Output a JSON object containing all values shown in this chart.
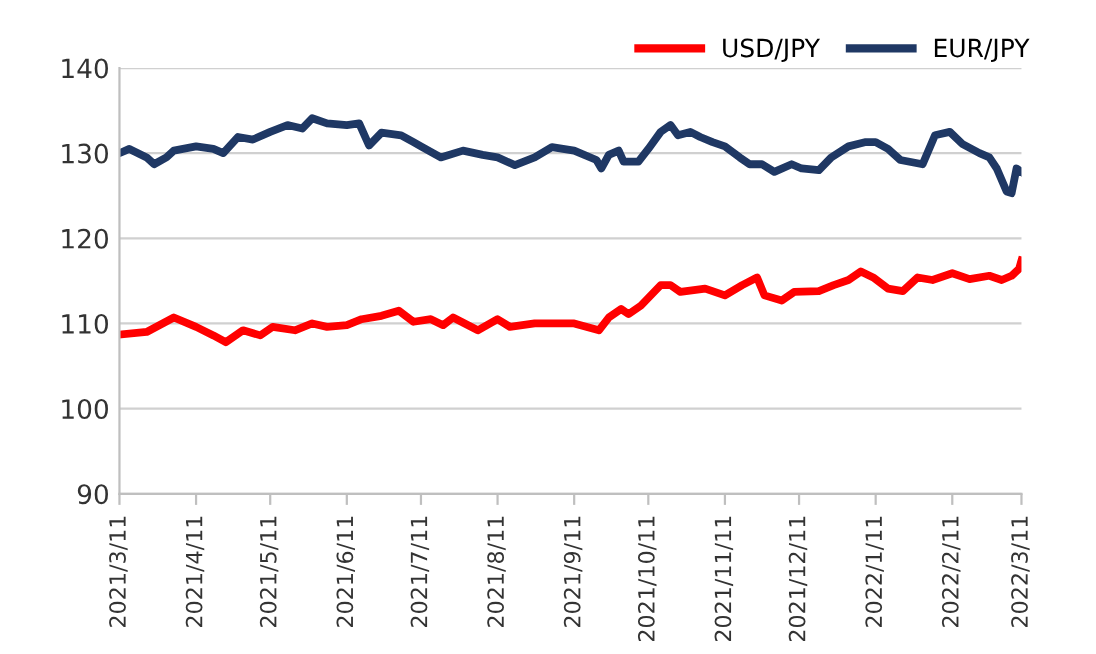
{
  "chart_data": {
    "type": "line",
    "xlim": [
      "2021-03-11",
      "2022-03-11"
    ],
    "ylim": [
      90,
      140
    ],
    "yticks": [
      90,
      100,
      110,
      120,
      130,
      140
    ],
    "xticks": [
      {
        "value": "2021-03-11",
        "label": "2021/3/11"
      },
      {
        "value": "2021-04-11",
        "label": "2021/4/11"
      },
      {
        "value": "2021-05-11",
        "label": "2021/5/11"
      },
      {
        "value": "2021-06-11",
        "label": "2021/6/11"
      },
      {
        "value": "2021-07-11",
        "label": "2021/7/11"
      },
      {
        "value": "2021-08-11",
        "label": "2021/8/11"
      },
      {
        "value": "2021-09-11",
        "label": "2021/9/11"
      },
      {
        "value": "2021-10-11",
        "label": "2021/10/11"
      },
      {
        "value": "2021-11-11",
        "label": "2021/11/11"
      },
      {
        "value": "2021-12-11",
        "label": "2021/12/11"
      },
      {
        "value": "2022-01-11",
        "label": "2022/1/11"
      },
      {
        "value": "2022-02-11",
        "label": "2022/2/11"
      },
      {
        "value": "2022-03-11",
        "label": "2022/3/11"
      }
    ],
    "grid": "y",
    "legend": "top right",
    "marker": "none",
    "line_style": "solid",
    "series": [
      {
        "name": "USD/JPY",
        "color": "#ff0000",
        "x": [
          "2021-03-11",
          "2021-03-22",
          "2021-04-02",
          "2021-04-11",
          "2021-04-18",
          "2021-04-23",
          "2021-04-30",
          "2021-05-07",
          "2021-05-12",
          "2021-05-21",
          "2021-05-28",
          "2021-06-03",
          "2021-06-11",
          "2021-06-17",
          "2021-06-25",
          "2021-07-02",
          "2021-07-08",
          "2021-07-15",
          "2021-07-20",
          "2021-07-24",
          "2021-08-03",
          "2021-08-11",
          "2021-08-16",
          "2021-08-26",
          "2021-09-03",
          "2021-09-11",
          "2021-09-21",
          "2021-09-25",
          "2021-09-30",
          "2021-10-03",
          "2021-10-08",
          "2021-10-16",
          "2021-10-20",
          "2021-10-24",
          "2021-11-03",
          "2021-11-11",
          "2021-11-18",
          "2021-11-24",
          "2021-11-27",
          "2021-12-04",
          "2021-12-09",
          "2021-12-19",
          "2021-12-25",
          "2021-12-31",
          "2022-01-05",
          "2022-01-10",
          "2022-01-16",
          "2022-01-22",
          "2022-01-28",
          "2022-02-03",
          "2022-02-11",
          "2022-02-18",
          "2022-02-26",
          "2022-03-03",
          "2022-03-07",
          "2022-03-10",
          "2022-03-11"
        ],
        "values": [
          108.7,
          109,
          110.7,
          109.6,
          108.6,
          107.8,
          109.2,
          108.6,
          109.6,
          109.2,
          110,
          109.6,
          109.8,
          110.5,
          110.9,
          111.5,
          110.2,
          110.5,
          109.8,
          110.7,
          109.2,
          110.5,
          109.6,
          110,
          110,
          110,
          109.2,
          110.7,
          111.7,
          111.1,
          112.1,
          114.5,
          114.5,
          113.7,
          114.1,
          113.3,
          114.5,
          115.4,
          113.3,
          112.7,
          113.7,
          113.8,
          114.5,
          115.1,
          116.1,
          115.4,
          114.1,
          113.8,
          115.4,
          115.1,
          115.9,
          115.2,
          115.6,
          115.1,
          115.6,
          116.4,
          117.4
        ]
      },
      {
        "name": "EUR/JPY",
        "color": "#1f3864",
        "x": [
          "2021-03-11",
          "2021-03-15",
          "2021-03-22",
          "2021-03-25",
          "2021-03-30",
          "2021-04-02",
          "2021-04-11",
          "2021-04-18",
          "2021-04-22",
          "2021-04-28",
          "2021-05-04",
          "2021-05-11",
          "2021-05-18",
          "2021-05-24",
          "2021-05-28",
          "2021-06-03",
          "2021-06-11",
          "2021-06-16",
          "2021-06-20",
          "2021-06-25",
          "2021-07-03",
          "2021-07-08",
          "2021-07-11",
          "2021-07-19",
          "2021-07-28",
          "2021-08-05",
          "2021-08-11",
          "2021-08-18",
          "2021-08-26",
          "2021-09-02",
          "2021-09-11",
          "2021-09-20",
          "2021-09-22",
          "2021-09-25",
          "2021-09-29",
          "2021-10-01",
          "2021-10-07",
          "2021-10-11",
          "2021-10-16",
          "2021-10-20",
          "2021-10-23",
          "2021-10-28",
          "2021-11-01",
          "2021-11-06",
          "2021-11-11",
          "2021-11-17",
          "2021-11-21",
          "2021-11-26",
          "2021-12-01",
          "2021-12-08",
          "2021-12-12",
          "2021-12-19",
          "2021-12-24",
          "2021-12-31",
          "2022-01-07",
          "2022-01-11",
          "2022-01-16",
          "2022-01-21",
          "2022-01-30",
          "2022-02-04",
          "2022-02-10",
          "2022-02-15",
          "2022-02-22",
          "2022-02-26",
          "2022-03-01",
          "2022-03-05",
          "2022-03-07",
          "2022-03-09",
          "2022-03-11"
        ],
        "values": [
          130,
          130.5,
          129.5,
          128.7,
          129.5,
          130.3,
          130.8,
          130.5,
          130,
          131.9,
          131.6,
          132.5,
          133.3,
          132.9,
          134.1,
          133.5,
          133.3,
          133.5,
          130.9,
          132.4,
          132.1,
          131.3,
          130.8,
          129.5,
          130.3,
          129.8,
          129.5,
          128.6,
          129.5,
          130.7,
          130.3,
          129.2,
          128.2,
          129.8,
          130.3,
          129,
          129,
          130.5,
          132.5,
          133.3,
          132.1,
          132.5,
          131.9,
          131.3,
          130.8,
          129.5,
          128.7,
          128.7,
          127.8,
          128.7,
          128.2,
          128,
          129.5,
          130.8,
          131.3,
          131.3,
          130.5,
          129.2,
          128.7,
          132.1,
          132.5,
          131.1,
          130,
          129.5,
          128.2,
          125.5,
          125.3,
          128.2,
          127.8
        ]
      }
    ]
  }
}
